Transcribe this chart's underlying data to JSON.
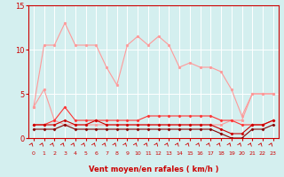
{
  "x": [
    0,
    1,
    2,
    3,
    4,
    5,
    6,
    7,
    8,
    9,
    10,
    11,
    12,
    13,
    14,
    15,
    16,
    17,
    18,
    19,
    20,
    21,
    22,
    23
  ],
  "series": [
    {
      "name": "max_rafales_light",
      "color": "#ff9999",
      "linewidth": 0.8,
      "marker": "o",
      "markersize": 1.8,
      "values": [
        3.5,
        10.5,
        10.5,
        13.0,
        10.5,
        10.5,
        10.5,
        8.0,
        6.0,
        10.5,
        11.5,
        10.5,
        11.5,
        10.5,
        8.0,
        8.5,
        8.0,
        8.0,
        7.5,
        5.5,
        2.5,
        5.0,
        5.0,
        5.0
      ]
    },
    {
      "name": "min_rafales_light",
      "color": "#ff9999",
      "linewidth": 0.8,
      "marker": "o",
      "markersize": 1.8,
      "values": [
        3.5,
        5.5,
        2.0,
        1.5,
        1.5,
        1.5,
        1.5,
        1.5,
        1.5,
        1.5,
        1.5,
        1.5,
        1.5,
        1.5,
        1.5,
        1.5,
        1.5,
        1.5,
        1.5,
        2.0,
        2.0,
        5.0,
        5.0,
        5.0
      ]
    },
    {
      "name": "max_vent_red",
      "color": "#ff3333",
      "linewidth": 0.8,
      "marker": "D",
      "markersize": 1.5,
      "values": [
        1.5,
        1.5,
        2.0,
        3.5,
        2.0,
        2.0,
        2.0,
        2.0,
        2.0,
        2.0,
        2.0,
        2.5,
        2.5,
        2.5,
        2.5,
        2.5,
        2.5,
        2.5,
        2.0,
        2.0,
        1.5,
        1.5,
        1.5,
        2.0
      ]
    },
    {
      "name": "mean_vent_dark",
      "color": "#cc0000",
      "linewidth": 0.8,
      "marker": "D",
      "markersize": 1.5,
      "values": [
        1.5,
        1.5,
        1.5,
        2.0,
        1.5,
        1.5,
        2.0,
        1.5,
        1.5,
        1.5,
        1.5,
        1.5,
        1.5,
        1.5,
        1.5,
        1.5,
        1.5,
        1.5,
        1.0,
        0.5,
        0.5,
        1.5,
        1.5,
        2.0
      ]
    },
    {
      "name": "min_vent_dark",
      "color": "#880000",
      "linewidth": 0.8,
      "marker": "D",
      "markersize": 1.5,
      "values": [
        1.0,
        1.0,
        1.0,
        1.5,
        1.0,
        1.0,
        1.0,
        1.0,
        1.0,
        1.0,
        1.0,
        1.0,
        1.0,
        1.0,
        1.0,
        1.0,
        1.0,
        1.0,
        0.5,
        0.0,
        0.0,
        1.0,
        1.0,
        1.5
      ]
    }
  ],
  "xlim": [
    -0.5,
    23.5
  ],
  "ylim": [
    0,
    15
  ],
  "yticks": [
    0,
    5,
    10,
    15
  ],
  "xticks": [
    0,
    1,
    2,
    3,
    4,
    5,
    6,
    7,
    8,
    9,
    10,
    11,
    12,
    13,
    14,
    15,
    16,
    17,
    18,
    19,
    20,
    21,
    22,
    23
  ],
  "xlabel": "Vent moyen/en rafales ( km/h )",
  "background_color": "#d4efef",
  "grid_color": "#ffffff",
  "axis_color": "#cc0000",
  "label_color": "#cc0000",
  "tick_color": "#cc0000"
}
